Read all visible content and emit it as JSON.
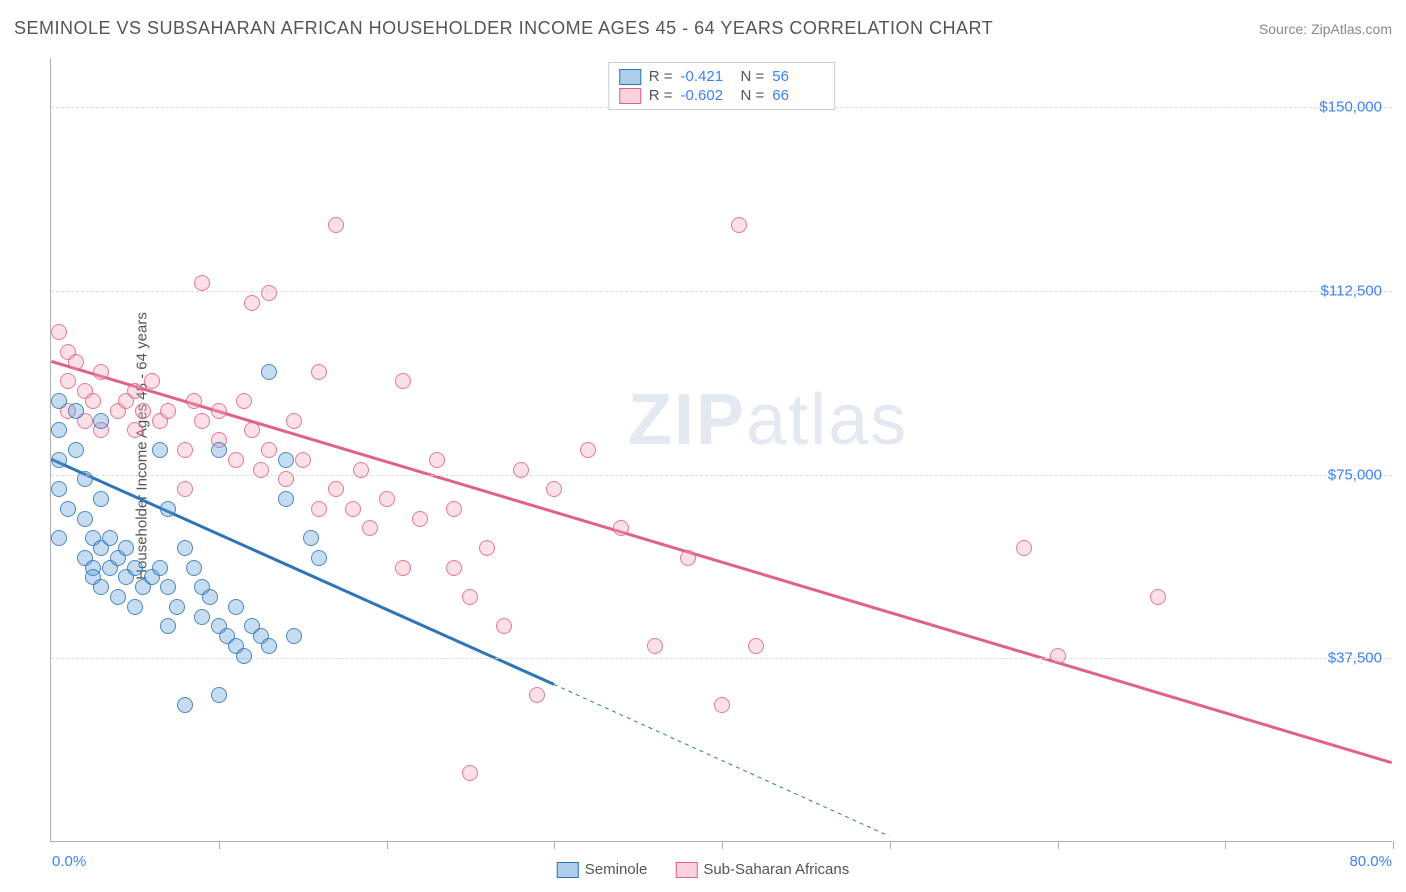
{
  "title": "SEMINOLE VS SUBSAHARAN AFRICAN HOUSEHOLDER INCOME AGES 45 - 64 YEARS CORRELATION CHART",
  "source": "Source: ZipAtlas.com",
  "ylabel": "Householder Income Ages 45 - 64 years",
  "watermark_bold": "ZIP",
  "watermark_light": "atlas",
  "chart": {
    "type": "scatter",
    "background_color": "#ffffff",
    "grid_color": "#dddddd",
    "axis_color": "#b0b0b0",
    "text_color": "#555555",
    "value_color": "#3b82f6",
    "title_fontsize": 18,
    "label_fontsize": 15,
    "xlim": [
      0,
      80
    ],
    "ylim": [
      0,
      160000
    ],
    "x_unit": "%",
    "y_unit": "$",
    "yticks": [
      37500,
      75000,
      112500,
      150000
    ],
    "ytick_labels": [
      "$37,500",
      "$75,000",
      "$112,500",
      "$150,000"
    ],
    "xticks": [
      0,
      10,
      20,
      30,
      40,
      50,
      60,
      70,
      80
    ],
    "xtick_labels_shown": {
      "0": "0.0%",
      "80": "80.0%"
    },
    "marker_radius": 8,
    "marker_fill_opacity": 0.35,
    "marker_stroke_opacity": 0.8,
    "marker_stroke_width": 1,
    "trend_line_width": 3,
    "series": [
      {
        "name": "Seminole",
        "color": "#5b9bd5",
        "stroke": "#2e75b6",
        "R": "-0.421",
        "N": "56",
        "trend": {
          "x1": 0,
          "y1": 78000,
          "x2": 30,
          "y2": 32000,
          "dash_to_x": 50,
          "dash_to_y": 1000
        },
        "points": [
          [
            0.5,
            90000
          ],
          [
            0.5,
            84000
          ],
          [
            0.5,
            78000
          ],
          [
            0.5,
            72000
          ],
          [
            1,
            68000
          ],
          [
            0.5,
            62000
          ],
          [
            1.5,
            88000
          ],
          [
            1.5,
            80000
          ],
          [
            2,
            74000
          ],
          [
            2,
            66000
          ],
          [
            2,
            58000
          ],
          [
            2.5,
            62000
          ],
          [
            2.5,
            56000
          ],
          [
            2.5,
            54000
          ],
          [
            3,
            60000
          ],
          [
            3,
            52000
          ],
          [
            3,
            70000
          ],
          [
            3.5,
            56000
          ],
          [
            3.5,
            62000
          ],
          [
            4,
            58000
          ],
          [
            4,
            50000
          ],
          [
            4.5,
            54000
          ],
          [
            4.5,
            60000
          ],
          [
            5,
            56000
          ],
          [
            5,
            48000
          ],
          [
            5.5,
            52000
          ],
          [
            3,
            86000
          ],
          [
            6,
            54000
          ],
          [
            6.5,
            80000
          ],
          [
            6.5,
            56000
          ],
          [
            7,
            52000
          ],
          [
            7,
            44000
          ],
          [
            7,
            68000
          ],
          [
            7.5,
            48000
          ],
          [
            8,
            60000
          ],
          [
            8.5,
            56000
          ],
          [
            8,
            28000
          ],
          [
            9,
            52000
          ],
          [
            9,
            46000
          ],
          [
            9.5,
            50000
          ],
          [
            10,
            44000
          ],
          [
            10,
            80000
          ],
          [
            10.5,
            42000
          ],
          [
            11,
            48000
          ],
          [
            11,
            40000
          ],
          [
            11.5,
            38000
          ],
          [
            10,
            30000
          ],
          [
            12,
            44000
          ],
          [
            12.5,
            42000
          ],
          [
            13,
            40000
          ],
          [
            13,
            96000
          ],
          [
            14,
            78000
          ],
          [
            14,
            70000
          ],
          [
            14.5,
            42000
          ],
          [
            15.5,
            62000
          ],
          [
            16,
            58000
          ]
        ]
      },
      {
        "name": "Sub-Saharan Africans",
        "color": "#f4a6b8",
        "stroke": "#e06287",
        "R": "-0.602",
        "N": "66",
        "trend": {
          "x1": 0,
          "y1": 98000,
          "x2": 80,
          "y2": 16000
        },
        "points": [
          [
            0.5,
            104000
          ],
          [
            1,
            100000
          ],
          [
            1,
            94000
          ],
          [
            1,
            88000
          ],
          [
            1.5,
            98000
          ],
          [
            2,
            92000
          ],
          [
            2,
            86000
          ],
          [
            2.5,
            90000
          ],
          [
            3,
            96000
          ],
          [
            3,
            84000
          ],
          [
            4,
            88000
          ],
          [
            4.5,
            90000
          ],
          [
            5,
            92000
          ],
          [
            5,
            84000
          ],
          [
            5.5,
            88000
          ],
          [
            6,
            94000
          ],
          [
            6.5,
            86000
          ],
          [
            7,
            88000
          ],
          [
            8,
            80000
          ],
          [
            8,
            72000
          ],
          [
            8.5,
            90000
          ],
          [
            9,
            86000
          ],
          [
            9,
            114000
          ],
          [
            10,
            82000
          ],
          [
            10,
            88000
          ],
          [
            11,
            78000
          ],
          [
            11.5,
            90000
          ],
          [
            12,
            84000
          ],
          [
            12,
            110000
          ],
          [
            12.5,
            76000
          ],
          [
            13,
            112000
          ],
          [
            13,
            80000
          ],
          [
            14,
            74000
          ],
          [
            14.5,
            86000
          ],
          [
            15,
            78000
          ],
          [
            16,
            68000
          ],
          [
            16,
            96000
          ],
          [
            17,
            72000
          ],
          [
            17,
            126000
          ],
          [
            18,
            68000
          ],
          [
            18.5,
            76000
          ],
          [
            19,
            64000
          ],
          [
            20,
            70000
          ],
          [
            21,
            94000
          ],
          [
            21,
            56000
          ],
          [
            22,
            66000
          ],
          [
            23,
            78000
          ],
          [
            24,
            56000
          ],
          [
            24,
            68000
          ],
          [
            25,
            50000
          ],
          [
            25,
            14000
          ],
          [
            26,
            60000
          ],
          [
            27,
            44000
          ],
          [
            28,
            76000
          ],
          [
            29,
            30000
          ],
          [
            30,
            72000
          ],
          [
            32,
            80000
          ],
          [
            34,
            64000
          ],
          [
            36,
            40000
          ],
          [
            38,
            58000
          ],
          [
            40,
            28000
          ],
          [
            41,
            126000
          ],
          [
            42,
            40000
          ],
          [
            58,
            60000
          ],
          [
            60,
            38000
          ],
          [
            66,
            50000
          ]
        ]
      }
    ],
    "legend_bottom": [
      {
        "label": "Seminole",
        "color": "#5b9bd5",
        "stroke": "#2e75b6"
      },
      {
        "label": "Sub-Saharan Africans",
        "color": "#f4a6b8",
        "stroke": "#e06287"
      }
    ]
  }
}
